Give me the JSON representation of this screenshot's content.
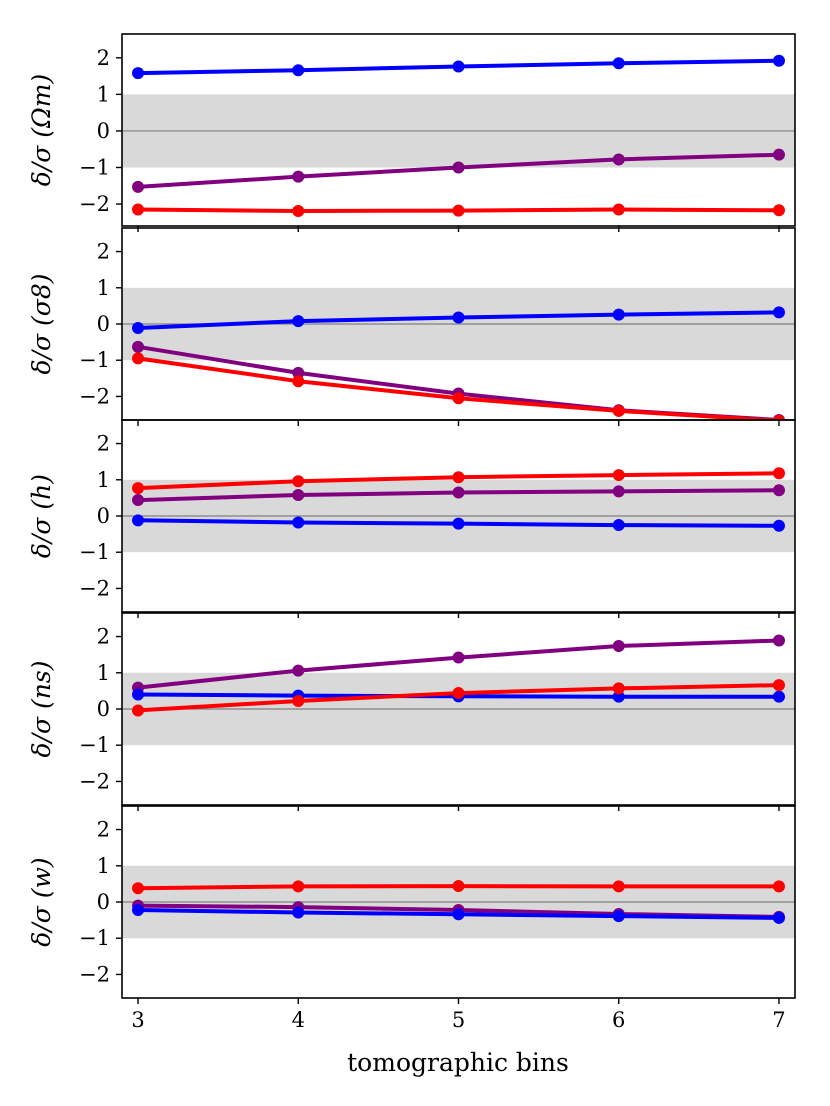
{
  "chart_data": {
    "type": "line",
    "xlabel": "tomographic bins",
    "x": [
      3,
      4,
      5,
      6,
      7
    ],
    "x_ticks": [
      "3",
      "4",
      "5",
      "6",
      "7"
    ],
    "xlim": [
      2.9,
      7.1
    ],
    "band": [
      -1,
      1
    ],
    "zero_line": true,
    "colors": {
      "band": "#d9d9d9",
      "zero": "#808080"
    },
    "panels": [
      {
        "ylabel": "δ/σ (Ωm)",
        "ylim": [
          -2.6,
          2.65
        ],
        "y_ticks": [
          "2",
          "1",
          "0",
          "−1",
          "−2"
        ],
        "series": [
          {
            "color": "#0000ff",
            "values": [
              1.58,
              1.66,
              1.76,
              1.85,
              1.92
            ]
          },
          {
            "color": "#800080",
            "values": [
              -1.53,
              -1.25,
              -1.0,
              -0.78,
              -0.65
            ]
          },
          {
            "color": "#ff0000",
            "values": [
              -2.15,
              -2.19,
              -2.18,
              -2.15,
              -2.17
            ]
          }
        ]
      },
      {
        "ylabel": "δ/σ (σ8)",
        "ylim": [
          -2.65,
          2.65
        ],
        "y_ticks": [
          "2",
          "1",
          "0",
          "−1",
          "−2"
        ],
        "series": [
          {
            "color": "#0000ff",
            "values": [
              -0.11,
              0.08,
              0.18,
              0.26,
              0.32
            ]
          },
          {
            "color": "#800080",
            "values": [
              -0.63,
              -1.35,
              -1.92,
              -2.38,
              -2.65
            ]
          },
          {
            "color": "#ff0000",
            "values": [
              -0.95,
              -1.58,
              -2.05,
              -2.4,
              -2.67
            ]
          }
        ]
      },
      {
        "ylabel": "δ/σ (h)",
        "ylim": [
          -2.65,
          2.65
        ],
        "y_ticks": [
          "2",
          "1",
          "0",
          "−1",
          "−2"
        ],
        "series": [
          {
            "color": "#ff0000",
            "values": [
              0.77,
              0.96,
              1.07,
              1.13,
              1.18
            ]
          },
          {
            "color": "#800080",
            "values": [
              0.44,
              0.58,
              0.65,
              0.68,
              0.71
            ]
          },
          {
            "color": "#0000ff",
            "values": [
              -0.12,
              -0.18,
              -0.21,
              -0.25,
              -0.27
            ]
          }
        ]
      },
      {
        "ylabel": "δ/σ (ns)",
        "ylim": [
          -2.65,
          2.65
        ],
        "y_ticks": [
          "2",
          "1",
          "0",
          "−1",
          "−2"
        ],
        "series": [
          {
            "color": "#800080",
            "values": [
              0.59,
              1.06,
              1.42,
              1.74,
              1.89
            ]
          },
          {
            "color": "#0000ff",
            "values": [
              0.4,
              0.37,
              0.35,
              0.34,
              0.34
            ]
          },
          {
            "color": "#ff0000",
            "values": [
              -0.04,
              0.22,
              0.44,
              0.57,
              0.66
            ]
          }
        ]
      },
      {
        "ylabel": "δ/σ (w)",
        "ylim": [
          -2.65,
          2.65
        ],
        "y_ticks": [
          "2",
          "1",
          "0",
          "−1",
          "−2"
        ],
        "series": [
          {
            "color": "#ff0000",
            "values": [
              0.38,
              0.43,
              0.44,
              0.43,
              0.43
            ]
          },
          {
            "color": "#800080",
            "values": [
              -0.1,
              -0.14,
              -0.22,
              -0.33,
              -0.41
            ]
          },
          {
            "color": "#0000ff",
            "values": [
              -0.22,
              -0.29,
              -0.34,
              -0.39,
              -0.44
            ]
          }
        ]
      }
    ]
  }
}
